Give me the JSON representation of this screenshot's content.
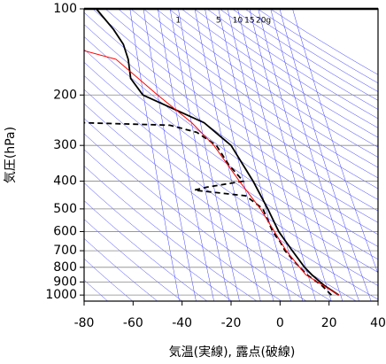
{
  "chart_data": {
    "type": "emagram",
    "xlabel": "気温(実線), 露点(破線)",
    "ylabel": "気圧(hPa)",
    "xlim": [
      -80,
      40
    ],
    "xticks": [
      -80,
      -60,
      -40,
      -20,
      0,
      20,
      40
    ],
    "ylim": [
      1050,
      100
    ],
    "ylog": true,
    "yticks": [
      100,
      200,
      300,
      400,
      500,
      600,
      700,
      800,
      900,
      1000
    ],
    "grid": true,
    "mixing_ratio_labels": [
      1,
      5,
      10,
      15,
      {
        "value": 20,
        "label": "20g"
      }
    ],
    "series": [
      {
        "color": "#000000",
        "dash": false,
        "y": [
          1000,
          925,
          850,
          800,
          700,
          600,
          500,
          400,
          300,
          250,
          200,
          175,
          150,
          133,
          118,
          100
        ],
        "x": [
          24,
          18,
          13,
          10,
          5,
          -0.5,
          -5,
          -11,
          -20,
          -31,
          -56,
          -61,
          -62,
          -64,
          -68,
          -75
        ]
      },
      {
        "color": "#000000",
        "dash": true,
        "y": [
          1000,
          925,
          850,
          800,
          700,
          650,
          600,
          500,
          450,
          430,
          420,
          400,
          350,
          300,
          270,
          255,
          250
        ],
        "x": [
          21,
          17,
          11,
          8,
          2,
          0,
          -3,
          -7,
          -14,
          -35,
          -30,
          -15,
          -21,
          -26,
          -34,
          -45,
          -80
        ]
      },
      {
        "color": "#ff0000",
        "dash": false,
        "y": [
          1000,
          850,
          700,
          500,
          400,
          300,
          250,
          200,
          150,
          140
        ],
        "x": [
          24,
          10.5,
          2.5,
          -8,
          -16.6,
          -27,
          -36,
          -50,
          -67,
          -80
        ]
      }
    ]
  }
}
